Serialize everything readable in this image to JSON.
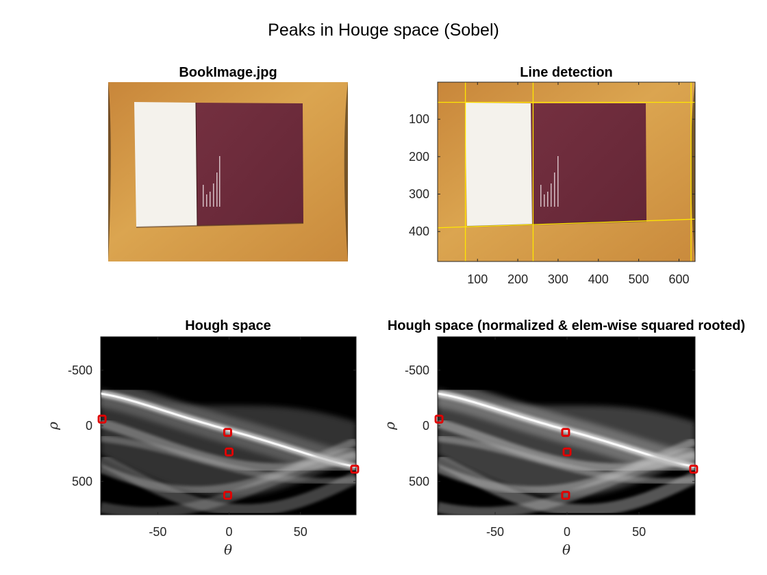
{
  "figure": {
    "suptitle": "Peaks in Houge space (Sobel)"
  },
  "colors": {
    "table_wood": "#d39b42",
    "book_white": "#f4f2ec",
    "book_cover": "#6e2b3a",
    "detected_line": "#ffe600",
    "peak_marker": "#e00000",
    "hough_background": "#000000"
  },
  "chart_data": [
    {
      "type": "image",
      "title": "BookImage.jpg",
      "axes_visible": false
    },
    {
      "type": "image",
      "title": "Line detection",
      "xlim": [
        1,
        640
      ],
      "ylim": [
        480,
        1
      ],
      "x_ticks": [
        100,
        200,
        300,
        400,
        500,
        600
      ],
      "y_ticks": [
        100,
        200,
        300,
        400
      ],
      "lines": [
        {
          "orientation": "vertical",
          "x": 70
        },
        {
          "orientation": "vertical",
          "x": 238
        },
        {
          "orientation": "vertical",
          "x": 630
        },
        {
          "orientation": "horizontal",
          "y_left": 55,
          "y_right": 55
        },
        {
          "orientation": "horizontal",
          "y_left": 390,
          "y_right": 367
        }
      ]
    },
    {
      "type": "heatmap",
      "title": "Hough space",
      "xlabel": "θ",
      "ylabel": "ρ",
      "xlim": [
        -90,
        89
      ],
      "ylim": [
        -800,
        800
      ],
      "x_ticks": [
        -50,
        0,
        50
      ],
      "y_ticks": [
        -500,
        0,
        500
      ],
      "peaks": [
        {
          "theta": -89,
          "rho": -60
        },
        {
          "theta": -1,
          "rho": 60
        },
        {
          "theta": 0,
          "rho": 235
        },
        {
          "theta": 88,
          "rho": 390
        },
        {
          "theta": -1,
          "rho": 625
        }
      ]
    },
    {
      "type": "heatmap",
      "title": "Hough space (normalized & elem-wise squared rooted)",
      "xlabel": "θ",
      "ylabel": "ρ",
      "xlim": [
        -90,
        89
      ],
      "ylim": [
        -800,
        800
      ],
      "x_ticks": [
        -50,
        0,
        50
      ],
      "y_ticks": [
        -500,
        0,
        500
      ],
      "peaks": [
        {
          "theta": -89,
          "rho": -60
        },
        {
          "theta": -1,
          "rho": 60
        },
        {
          "theta": 0,
          "rho": 235
        },
        {
          "theta": 88,
          "rho": 390
        },
        {
          "theta": -1,
          "rho": 625
        }
      ]
    }
  ]
}
